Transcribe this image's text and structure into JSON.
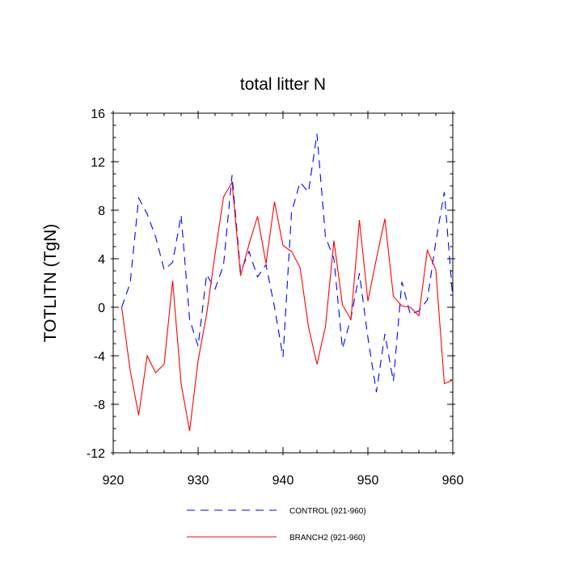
{
  "chart_data": {
    "type": "line",
    "title": "total litter N",
    "xlabel": "",
    "ylabel": "TOTLITN  (TgN)",
    "xlim": [
      920,
      960
    ],
    "ylim": [
      -12,
      16
    ],
    "xticks": [
      920,
      930,
      940,
      950,
      960
    ],
    "yticks": [
      -12,
      -8,
      -4,
      0,
      4,
      8,
      12,
      16
    ],
    "x": [
      921,
      922,
      923,
      924,
      925,
      926,
      927,
      928,
      929,
      930,
      931,
      932,
      933,
      934,
      935,
      936,
      937,
      938,
      939,
      940,
      941,
      942,
      943,
      944,
      945,
      946,
      947,
      948,
      949,
      950,
      951,
      952,
      953,
      954,
      955,
      956,
      957,
      958,
      959,
      960
    ],
    "series": [
      {
        "name": "CONTROL (921-960)",
        "color": "#0000ff",
        "dash": "dashed",
        "values": [
          0.0,
          2.0,
          9.0,
          7.7,
          5.8,
          3.1,
          3.7,
          7.6,
          -1.0,
          -3.2,
          2.7,
          1.5,
          3.5,
          10.9,
          2.9,
          4.6,
          2.5,
          3.5,
          0.0,
          -4.1,
          7.8,
          10.3,
          9.5,
          14.3,
          5.8,
          4.0,
          -3.4,
          -0.9,
          2.8,
          -2.5,
          -7.0,
          -2.2,
          -6.1,
          2.1,
          -0.6,
          -0.3,
          0.6,
          5.4,
          9.5,
          0.7
        ]
      },
      {
        "name": "BRANCH2 (921-960)",
        "color": "#ff0000",
        "dash": "solid",
        "values": [
          0.0,
          -5.2,
          -8.9,
          -4.0,
          -5.4,
          -4.7,
          2.2,
          -6.3,
          -10.2,
          -4.4,
          -0.6,
          4.4,
          9.1,
          10.3,
          2.6,
          5.2,
          7.5,
          3.6,
          8.7,
          5.1,
          4.6,
          3.3,
          -1.6,
          -4.7,
          -1.6,
          5.5,
          0.2,
          -1.0,
          7.2,
          0.5,
          4.0,
          7.3,
          0.9,
          0.1,
          0.0,
          -0.7,
          4.7,
          3.1,
          -6.3,
          -6.0
        ]
      }
    ],
    "legend_position": "bottom"
  }
}
